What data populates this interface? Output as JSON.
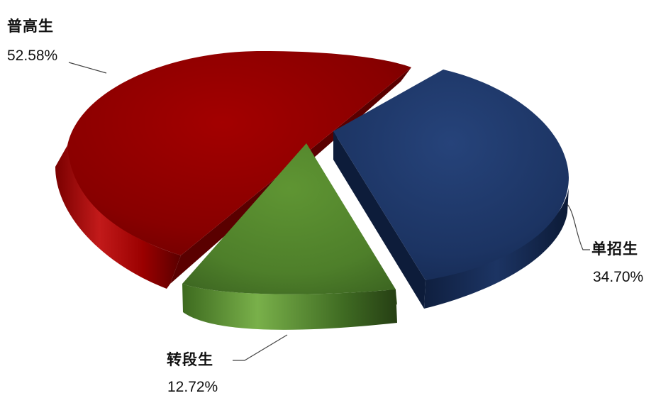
{
  "chart_data": {
    "type": "pie",
    "style": "3d-exploded",
    "title": "",
    "slices": [
      {
        "name": "普高生",
        "value": 52.58,
        "label": "52.58%",
        "color": "#8b0000"
      },
      {
        "name": "单招生",
        "value": 34.7,
        "label": "34.70%",
        "color": "#1f3a6b"
      },
      {
        "name": "转段生",
        "value": 12.72,
        "label": "12.72%",
        "color": "#5a8a2e"
      }
    ],
    "legend": "none"
  }
}
